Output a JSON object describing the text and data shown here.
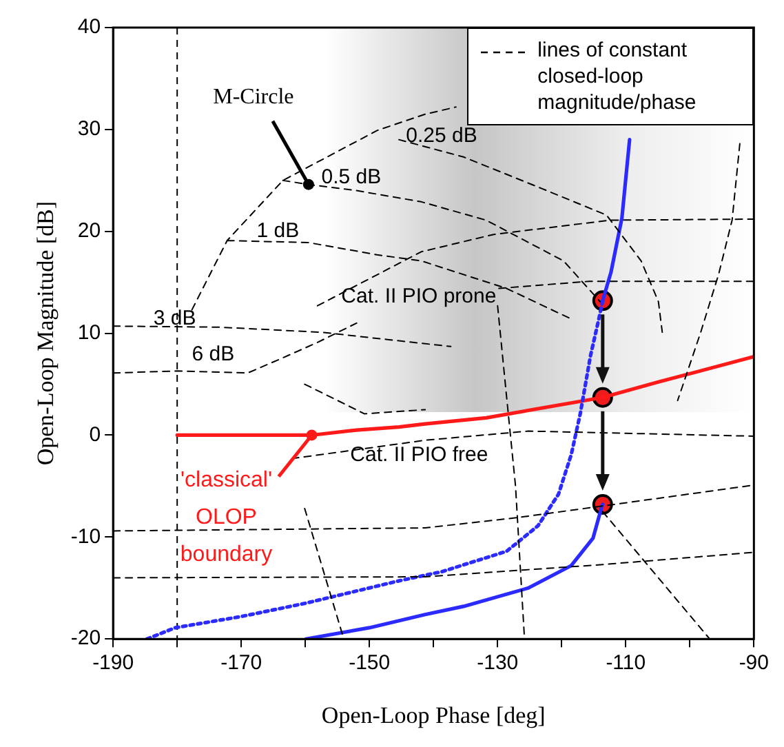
{
  "chart_data": {
    "type": "line",
    "xlabel": "Open-Loop Phase [deg]",
    "ylabel": "Open-Loop Magnitude [dB]",
    "xlim": [
      -190,
      -90
    ],
    "xticks": [
      -190,
      {
        "value": -180,
        "label": null
      },
      -170,
      {
        "value": -160,
        "label": null
      },
      -150,
      {
        "value": -140,
        "label": null
      },
      -130,
      {
        "value": -120,
        "label": null
      },
      -110,
      {
        "value": -100,
        "label": null
      },
      -90
    ],
    "ylim": [
      -20,
      40
    ],
    "yticks": [
      -20,
      -10,
      0,
      10,
      20,
      30,
      40
    ],
    "grid": false,
    "ref_lines": [
      {
        "axis": "x",
        "value": -180,
        "color": "#000000",
        "line_style": "dashed"
      }
    ],
    "legend": "top right",
    "marker": "none",
    "series": [
      {
        "name": "lines of constant closed-loop magnitude/phase",
        "type": "line",
        "color": "#000000",
        "line_style": "dashed",
        "x": [
          -177.7,
          -172.2,
          -163.5,
          -148.8,
          -141.3,
          -136.5,
          null,
          -163.5,
          -159.5,
          -152.0,
          -141.9,
          -131.8,
          -119.7,
          -114.0,
          null,
          -145.4,
          -135.3,
          -123.1,
          -113.0,
          -107.6,
          -104.9,
          -104.3,
          null,
          -172.2,
          -159.5,
          -148.8,
          -141.9,
          -128.6,
          -118.5,
          null,
          -158.1,
          -141.9,
          -130.6,
          -112.4,
          -90,
          null,
          -129.8,
          -115.7,
          -90,
          null,
          -92.2,
          -93.4,
          -95.5,
          -98.3,
          -101.9,
          null,
          -190,
          -173.6,
          -157.5,
          -147.4,
          -137.3,
          null,
          -190,
          -180,
          -169,
          -164.2,
          -158.1,
          -152.0,
          null,
          -160.1,
          -150.8,
          -141.3,
          null,
          -190,
          -141.3,
          -127,
          -113,
          -90,
          null,
          -190,
          -141.3,
          -113.6,
          -90,
          null,
          -160.1,
          -154.0,
          null,
          -113.6,
          -96.9,
          null,
          -130,
          -128.6,
          -127.2,
          -125.8,
          null,
          -162.1,
          -141.3,
          -125.2,
          -90
        ],
        "values": [
          12.3,
          19.1,
          25.0,
          29.9,
          31.5,
          32.2,
          null,
          25.0,
          24.6,
          24.0,
          22.9,
          21.1,
          17.1,
          13.1,
          null,
          29.0,
          27.3,
          24.2,
          21.6,
          17.1,
          13.1,
          10.1,
          null,
          19.1,
          18.9,
          17.7,
          17.1,
          14.4,
          11.4,
          null,
          12.7,
          18.0,
          19.7,
          21.1,
          21.2,
          null,
          14.4,
          15.1,
          15.1,
          null,
          28.6,
          21.1,
          15.8,
          10.1,
          3.4,
          null,
          10.7,
          10.6,
          10.1,
          9.4,
          8.7,
          null,
          6.1,
          6.3,
          6.1,
          7.4,
          9.1,
          11.0,
          null,
          5.0,
          2.1,
          2.5,
          null,
          -9.4,
          -9.1,
          -8.1,
          -6.9,
          -4.9,
          null,
          -14.0,
          -13.9,
          -12.7,
          -11.5,
          null,
          -7.2,
          -20,
          null,
          -7.5,
          -20,
          null,
          12.7,
          3.8,
          -5,
          -20,
          null,
          -2.3,
          -0.5,
          0.4,
          -0.1
        ]
      },
      {
        "type": "line",
        "color": "#2b2bff",
        "line_style": "solid",
        "x": [
          -109.4,
          -110.6,
          -112.3,
          -113.6
        ],
        "values": [
          29.0,
          21.3,
          16.0,
          13.2
        ]
      },
      {
        "type": "line",
        "color": "#2b2bff",
        "line_style": "dotted",
        "x": [
          -113.6,
          -114.2,
          -115.5,
          -117.1,
          -118.5,
          -120.5,
          -123.7,
          -128.6,
          -138.7,
          -145.4,
          -160,
          -170,
          -180.3,
          -184.7
        ],
        "values": [
          13.2,
          11.4,
          7.8,
          2.1,
          -1.9,
          -5.8,
          -8.9,
          -11.4,
          -13.4,
          -14.3,
          -16.5,
          -17.8,
          -18.9,
          -20
        ]
      },
      {
        "type": "line",
        "color": "#2b2bff",
        "line_style": "solid",
        "x": [
          -159.9,
          -150,
          -141.3,
          -135.3,
          -125.2,
          -118.5,
          -115.1,
          -114.0,
          -113.6
        ],
        "values": [
          -20,
          -18.9,
          -17.6,
          -16.8,
          -15.0,
          -12.8,
          -10.1,
          -7.6,
          -6.8
        ]
      },
      {
        "type": "line",
        "color": "#ff1a1a",
        "line_style": "solid",
        "x": [
          -180,
          -159,
          -152,
          -145.4,
          -141.3,
          -131.8,
          -113.6,
          -105,
          -90
        ],
        "values": [
          0,
          0,
          0.5,
          0.8,
          1.1,
          1.7,
          3.7,
          5.2,
          7.7
        ]
      },
      {
        "type": "scatter",
        "color": "#ee1c1c",
        "marker": "circle",
        "x": [
          -113.6,
          -113.6,
          -113.6
        ],
        "values": [
          13.2,
          3.7,
          -6.8
        ]
      }
    ],
    "annotations": [
      {
        "text": "M-Circle",
        "x": -159.5,
        "y": 24.6
      },
      {
        "text": "'classical' OLOP boundary",
        "x": -159,
        "y": 0
      },
      {
        "text": "0.25 dB",
        "x": -144.3,
        "y": 29.3
      },
      "0.5 dB",
      "1 dB",
      "3 dB",
      "6 dB",
      "Cat. II PIO prone",
      "Cat. II PIO free"
    ]
  }
}
